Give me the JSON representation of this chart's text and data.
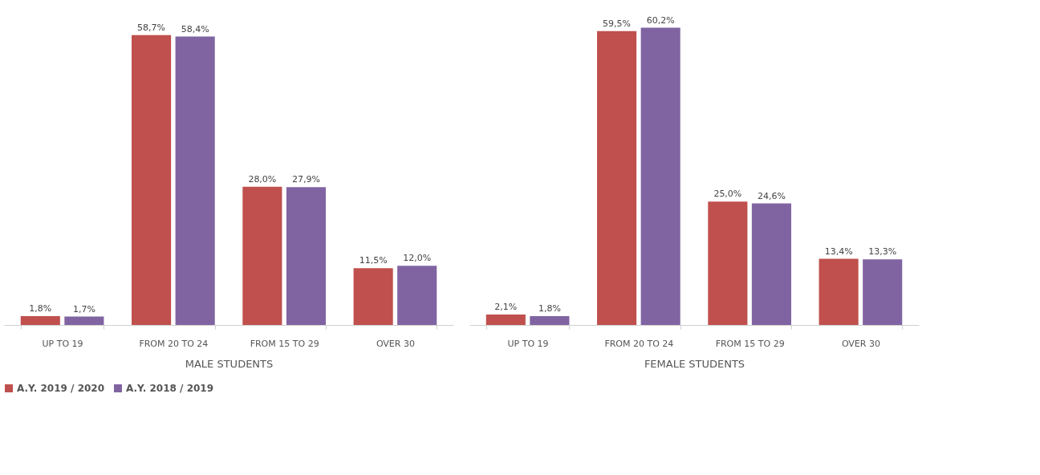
{
  "chart_data": [
    {
      "type": "bar",
      "xlabel": "MALE STUDENTS",
      "categories": [
        "UP TO 19",
        "FROM 20 TO 24",
        "FROM 15 TO 29",
        "OVER 30"
      ],
      "legend": "bottom",
      "grid": false,
      "series": [
        {
          "name": "A.Y. 2019 / 2020",
          "color": "#c0504d",
          "values": [
            1.8,
            58.7,
            28.0,
            11.5
          ],
          "value_labels": [
            "1,8%",
            "58,7%",
            "28,0%",
            "11,5%"
          ]
        },
        {
          "name": "A.Y. 2018 / 2019",
          "color": "#8064a2",
          "values": [
            1.7,
            58.4,
            27.9,
            12.0
          ],
          "value_labels": [
            "1,7%",
            "58,4%",
            "27,9%",
            "12,0%"
          ]
        }
      ]
    },
    {
      "type": "bar",
      "xlabel": "FEMALE STUDENTS",
      "categories": [
        "UP TO 19",
        "FROM 20 TO 24",
        "FROM 15 TO 29",
        "OVER 30"
      ],
      "legend": "bottom",
      "grid": false,
      "series": [
        {
          "name": "A.Y. 2019 / 2020",
          "color": "#c0504d",
          "values": [
            2.1,
            59.5,
            25.0,
            13.4
          ],
          "value_labels": [
            "2,1%",
            "59,5%",
            "25,0%",
            "13,4%"
          ]
        },
        {
          "name": "A.Y. 2018 / 2019",
          "color": "#8064a2",
          "values": [
            1.8,
            60.2,
            24.6,
            13.3
          ],
          "value_labels": [
            "1,8%",
            "60,2%",
            "24,6%",
            "13,3%"
          ]
        }
      ]
    }
  ]
}
